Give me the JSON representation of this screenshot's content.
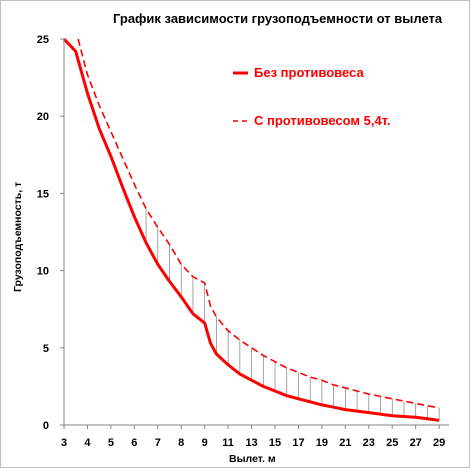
{
  "chart_data": {
    "type": "line",
    "title": "График зависимости грузоподъемности от вылета",
    "xlabel": "Вылет. м",
    "ylabel": "Грузоподъемность, т",
    "xlim": [
      3,
      29.5
    ],
    "ylim": [
      0,
      25
    ],
    "x_ticks": [
      "3",
      "4",
      "5",
      "6",
      "7",
      "8",
      "9",
      "11",
      "13",
      "15",
      "17",
      "19",
      "21",
      "23",
      "25",
      "27",
      "29"
    ],
    "y_ticks": [
      "0",
      "5",
      "10",
      "15",
      "20",
      "25"
    ],
    "grid": false,
    "legend_position": "top-right",
    "series_color": "#ff0000",
    "series": [
      {
        "name": "Без противовеса",
        "style": "solid",
        "x": [
          3,
          3.5,
          4,
          4.5,
          5,
          5.5,
          6,
          6.5,
          7,
          7.5,
          8,
          8.5,
          9,
          9.5,
          10,
          11,
          12,
          13,
          14,
          15,
          16,
          17,
          18,
          19,
          20,
          21,
          22,
          23,
          24,
          25,
          26,
          27,
          28,
          29
        ],
        "y": [
          25,
          24.2,
          21.5,
          19.2,
          17.4,
          15.4,
          13.5,
          11.8,
          10.4,
          9.3,
          8.3,
          7.2,
          6.6,
          5.3,
          4.6,
          3.9,
          3.3,
          2.9,
          2.5,
          2.2,
          1.9,
          1.7,
          1.5,
          1.3,
          1.15,
          1.0,
          0.9,
          0.8,
          0.7,
          0.6,
          0.55,
          0.5,
          0.4,
          0.3
        ]
      },
      {
        "name": "С противовесом 5,4т.",
        "style": "dashed",
        "x": [
          3.6,
          4,
          4.5,
          5,
          5.5,
          6,
          6.5,
          7,
          7.5,
          8,
          8.5,
          9,
          9.5,
          10,
          11,
          12,
          13,
          14,
          15,
          16,
          17,
          18,
          19,
          20,
          21,
          22,
          23,
          24,
          25,
          26,
          27,
          28,
          29
        ],
        "y": [
          25,
          22.7,
          20.7,
          19.0,
          17.3,
          15.6,
          14.0,
          12.8,
          11.7,
          10.4,
          9.6,
          9.2,
          7.7,
          7.0,
          6.1,
          5.5,
          5.0,
          4.5,
          4.1,
          3.7,
          3.4,
          3.1,
          2.9,
          2.6,
          2.4,
          2.2,
          2.0,
          1.85,
          1.7,
          1.55,
          1.4,
          1.25,
          1.1
        ]
      }
    ],
    "hatching_between_series": true
  }
}
